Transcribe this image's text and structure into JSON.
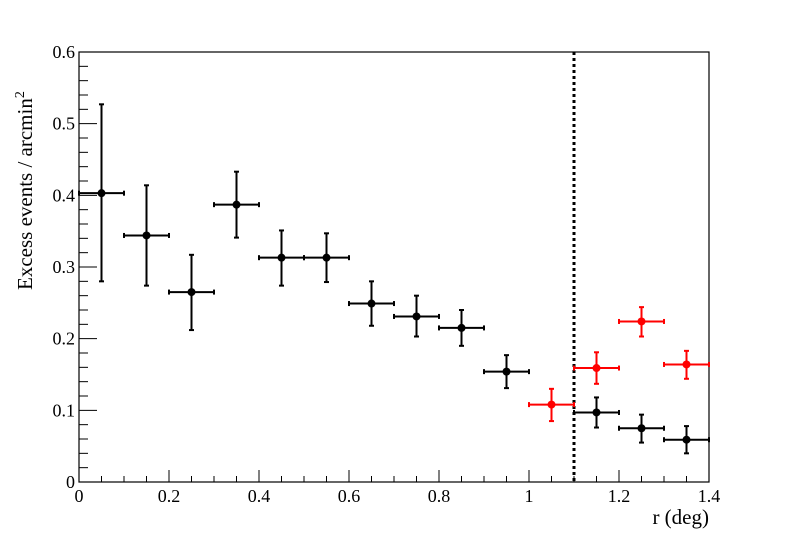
{
  "chart_data": {
    "type": "scatter",
    "xlabel": "r (deg)",
    "ylabel": "Excess events / arcmin",
    "ylabel_superscript": "2",
    "xlim": [
      0,
      1.4
    ],
    "ylim": [
      0,
      0.6
    ],
    "x_ticks": [
      {
        "value": 0,
        "label": "0"
      },
      {
        "value": 0.2,
        "label": "0.2"
      },
      {
        "value": 0.4,
        "label": "0.4"
      },
      {
        "value": 0.6,
        "label": "0.6"
      },
      {
        "value": 0.8,
        "label": "0.8"
      },
      {
        "value": 1.0,
        "label": "1"
      },
      {
        "value": 1.2,
        "label": "1.2"
      },
      {
        "value": 1.4,
        "label": "1.4"
      }
    ],
    "y_ticks": [
      {
        "value": 0,
        "label": "0"
      },
      {
        "value": 0.1,
        "label": "0.1"
      },
      {
        "value": 0.2,
        "label": "0.2"
      },
      {
        "value": 0.3,
        "label": "0.3"
      },
      {
        "value": 0.4,
        "label": "0.4"
      },
      {
        "value": 0.5,
        "label": "0.5"
      },
      {
        "value": 0.6,
        "label": "0.6"
      }
    ],
    "grid": false,
    "bin_half_width": 0.05,
    "vertical_line": {
      "x": 1.1,
      "style": "dotted",
      "color": "#000000"
    },
    "series": [
      {
        "color": "#000000",
        "points": [
          {
            "x": 0.05,
            "y": 0.403,
            "ylow": 0.28,
            "yhigh": 0.527
          },
          {
            "x": 0.15,
            "y": 0.344,
            "ylow": 0.274,
            "yhigh": 0.414
          },
          {
            "x": 0.25,
            "y": 0.265,
            "ylow": 0.212,
            "yhigh": 0.317
          },
          {
            "x": 0.35,
            "y": 0.387,
            "ylow": 0.341,
            "yhigh": 0.433
          },
          {
            "x": 0.45,
            "y": 0.313,
            "ylow": 0.274,
            "yhigh": 0.351
          },
          {
            "x": 0.55,
            "y": 0.313,
            "ylow": 0.279,
            "yhigh": 0.347
          },
          {
            "x": 0.65,
            "y": 0.249,
            "ylow": 0.218,
            "yhigh": 0.28
          },
          {
            "x": 0.75,
            "y": 0.231,
            "ylow": 0.203,
            "yhigh": 0.26
          },
          {
            "x": 0.85,
            "y": 0.215,
            "ylow": 0.19,
            "yhigh": 0.24
          },
          {
            "x": 0.95,
            "y": 0.154,
            "ylow": 0.131,
            "yhigh": 0.177
          },
          {
            "x": 1.15,
            "y": 0.097,
            "ylow": 0.076,
            "yhigh": 0.118
          },
          {
            "x": 1.25,
            "y": 0.075,
            "ylow": 0.055,
            "yhigh": 0.094
          },
          {
            "x": 1.35,
            "y": 0.059,
            "ylow": 0.04,
            "yhigh": 0.078
          }
        ]
      },
      {
        "color": "#ff0000",
        "points": [
          {
            "x": 1.05,
            "y": 0.108,
            "ylow": 0.085,
            "yhigh": 0.13
          },
          {
            "x": 1.15,
            "y": 0.159,
            "ylow": 0.137,
            "yhigh": 0.181
          },
          {
            "x": 1.25,
            "y": 0.224,
            "ylow": 0.203,
            "yhigh": 0.244
          },
          {
            "x": 1.35,
            "y": 0.164,
            "ylow": 0.144,
            "yhigh": 0.183
          }
        ]
      }
    ]
  }
}
